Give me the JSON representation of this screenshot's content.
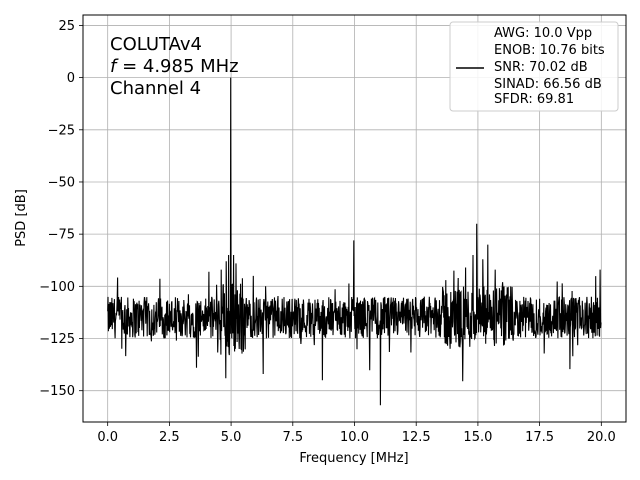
{
  "chart_data": {
    "type": "line",
    "xlabel": "Frequency [MHz]",
    "ylabel": "PSD [dB]",
    "xlim": [
      -1.0,
      21.0
    ],
    "ylim": [
      -165,
      30
    ],
    "x_ticks": [
      0.0,
      2.5,
      5.0,
      7.5,
      10.0,
      12.5,
      15.0,
      17.5,
      20.0
    ],
    "x_tick_labels": [
      "0.0",
      "2.5",
      "5.0",
      "7.5",
      "10.0",
      "12.5",
      "15.0",
      "17.5",
      "20.0"
    ],
    "y_ticks": [
      25,
      0,
      -25,
      -50,
      -75,
      -100,
      -125,
      -150
    ],
    "y_tick_labels": [
      "25",
      "0",
      "−25",
      "−50",
      "−75",
      "−100",
      "−125",
      "−150"
    ],
    "grid": true,
    "annotation": {
      "line1": "COLUTAv4",
      "line2_symbol": "f",
      "line2_rest": " = 4.985 MHz",
      "line3": "Channel 4"
    },
    "legend": {
      "placement": "upper right",
      "lines": [
        "AWG: 10.0 Vpp",
        "ENOB: 10.76 bits",
        "SNR: 70.02 dB",
        "SINAD: 66.56 dB",
        "SFDR: 69.81"
      ]
    },
    "series": [
      {
        "color": "#000000",
        "floor_db": -115,
        "floor_spread_db": 10,
        "peaks": [
          {
            "x": 4.985,
            "y": 0
          },
          {
            "x": 4.9,
            "y": -85
          },
          {
            "x": 5.1,
            "y": -85
          },
          {
            "x": 4.8,
            "y": -88
          },
          {
            "x": 5.2,
            "y": -89
          },
          {
            "x": 4.6,
            "y": -92
          },
          {
            "x": 4.1,
            "y": -93
          },
          {
            "x": 3.6,
            "y": -139
          },
          {
            "x": 5.9,
            "y": -95
          },
          {
            "x": 6.4,
            "y": -100
          },
          {
            "x": 6.3,
            "y": -142
          },
          {
            "x": 8.7,
            "y": -145
          },
          {
            "x": 9.97,
            "y": -78
          },
          {
            "x": 11.05,
            "y": -157
          },
          {
            "x": 13.7,
            "y": -97
          },
          {
            "x": 14.5,
            "y": -91
          },
          {
            "x": 14.2,
            "y": -96
          },
          {
            "x": 14.8,
            "y": -85
          },
          {
            "x": 14.95,
            "y": -70
          },
          {
            "x": 15.2,
            "y": -87
          },
          {
            "x": 15.4,
            "y": -80
          },
          {
            "x": 15.7,
            "y": -92
          },
          {
            "x": 16.0,
            "y": -98
          },
          {
            "x": 19.95,
            "y": -92
          }
        ]
      }
    ]
  }
}
